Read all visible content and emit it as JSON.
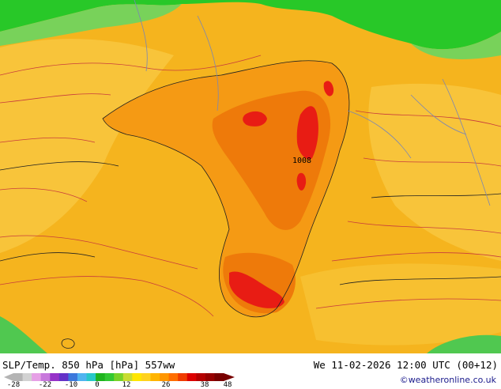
{
  "header": {
    "product": "SLP/Temp. 850 hPa [hPa] 557ww",
    "valid_time": "We 11-02-2026 12:00 UTC (00+12)"
  },
  "credit": "©weatheronline.co.uk",
  "map": {
    "isobar_label": "1008"
  },
  "color_scale": {
    "ticks": [
      "-28",
      "-22",
      "-10",
      "0",
      "12",
      "26",
      "38",
      "48"
    ],
    "colors": [
      "#b4b4b4",
      "#d2d2d2",
      "#e6a0e6",
      "#c878dc",
      "#9632c8",
      "#6432c8",
      "#3c78dc",
      "#50b4f0",
      "#28c8c8",
      "#1eb41e",
      "#32c832",
      "#78d228",
      "#c8dc32",
      "#ffe600",
      "#ffd21e",
      "#ffb400",
      "#ff9600",
      "#ff6e00",
      "#f03c00",
      "#dc0000",
      "#b40000",
      "#960000",
      "#780000"
    ]
  },
  "palette": {
    "warm_base": "#f5b41e",
    "warm_light": "#f8c832",
    "orange": "#f59a14",
    "deep_orange": "#ee7a0a",
    "red": "#e81c14",
    "green": "#28c828",
    "light_green": "#78d25a"
  }
}
